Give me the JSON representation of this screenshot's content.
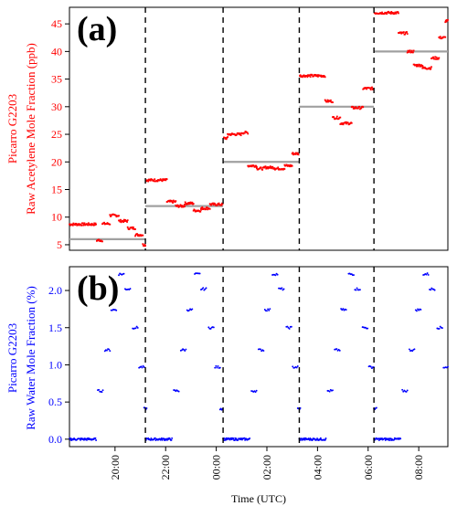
{
  "chart_data": [
    {
      "type": "scatter",
      "panel_label": "(a)",
      "ylabel_line1": "Picarro G2203",
      "ylabel_line2": "Raw Acetylene Mole Fraction (ppb)",
      "label_color": "#ff0000",
      "marker_color": "#ff0000",
      "reference_color": "#a0a0a0",
      "ylim": [
        4,
        48
      ],
      "yticks": [
        "5",
        "10",
        "15",
        "20",
        "25",
        "30",
        "35",
        "40",
        "45"
      ],
      "ytick_values": [
        5,
        10,
        15,
        20,
        25,
        30,
        35,
        40,
        45
      ],
      "grid": false,
      "dashed_vlines_hours": [
        21.2,
        24.27,
        27.28,
        30.23
      ],
      "reference_lines": [
        {
          "value": 6,
          "x_start_hours": 18.2,
          "x_end_hours": 21.2
        },
        {
          "value": 12,
          "x_start_hours": 21.2,
          "x_end_hours": 24.27
        },
        {
          "value": 20,
          "x_start_hours": 24.27,
          "x_end_hours": 27.28
        },
        {
          "value": 30,
          "x_start_hours": 27.28,
          "x_end_hours": 30.23
        },
        {
          "value": 40,
          "x_start_hours": 30.23,
          "x_end_hours": 33.15
        }
      ],
      "segments": [
        {
          "x_start_hours": 18.2,
          "x_end_hours": 19.25,
          "value": 8.7
        },
        {
          "x_start_hours": 19.28,
          "x_end_hours": 19.5,
          "value": 5.8
        },
        {
          "x_start_hours": 19.5,
          "x_end_hours": 19.8,
          "value": 8.8
        },
        {
          "x_start_hours": 19.8,
          "x_end_hours": 20.15,
          "value": 10.3
        },
        {
          "x_start_hours": 20.15,
          "x_end_hours": 20.5,
          "value": 9.3
        },
        {
          "x_start_hours": 20.5,
          "x_end_hours": 20.8,
          "value": 8.0
        },
        {
          "x_start_hours": 20.8,
          "x_end_hours": 21.1,
          "value": 6.8
        },
        {
          "x_start_hours": 21.1,
          "x_end_hours": 21.2,
          "value": 5.0
        },
        {
          "x_start_hours": 21.22,
          "x_end_hours": 22.05,
          "value": 16.7
        },
        {
          "x_start_hours": 22.05,
          "x_end_hours": 22.4,
          "value": 12.8
        },
        {
          "x_start_hours": 22.4,
          "x_end_hours": 22.75,
          "value": 12.0
        },
        {
          "x_start_hours": 22.75,
          "x_end_hours": 23.1,
          "value": 12.5
        },
        {
          "x_start_hours": 23.1,
          "x_end_hours": 23.4,
          "value": 11.2
        },
        {
          "x_start_hours": 23.4,
          "x_end_hours": 23.75,
          "value": 11.6
        },
        {
          "x_start_hours": 23.75,
          "x_end_hours": 24.25,
          "value": 12.3
        },
        {
          "x_start_hours": 24.3,
          "x_end_hours": 24.45,
          "value": 24.3
        },
        {
          "x_start_hours": 24.45,
          "x_end_hours": 25.0,
          "value": 25.0
        },
        {
          "x_start_hours": 25.0,
          "x_end_hours": 25.25,
          "value": 25.3
        },
        {
          "x_start_hours": 25.25,
          "x_end_hours": 25.6,
          "value": 19.3
        },
        {
          "x_start_hours": 25.6,
          "x_end_hours": 25.9,
          "value": 18.8
        },
        {
          "x_start_hours": 25.9,
          "x_end_hours": 26.3,
          "value": 19.0
        },
        {
          "x_start_hours": 26.3,
          "x_end_hours": 26.7,
          "value": 18.8
        },
        {
          "x_start_hours": 26.7,
          "x_end_hours": 27.0,
          "value": 19.3
        },
        {
          "x_start_hours": 27.0,
          "x_end_hours": 27.25,
          "value": 21.5
        },
        {
          "x_start_hours": 27.3,
          "x_end_hours": 28.3,
          "value": 35.6
        },
        {
          "x_start_hours": 28.3,
          "x_end_hours": 28.6,
          "value": 31.0
        },
        {
          "x_start_hours": 28.6,
          "x_end_hours": 28.9,
          "value": 28.0
        },
        {
          "x_start_hours": 28.9,
          "x_end_hours": 29.35,
          "value": 27.0
        },
        {
          "x_start_hours": 29.35,
          "x_end_hours": 29.8,
          "value": 29.8
        },
        {
          "x_start_hours": 29.8,
          "x_end_hours": 30.2,
          "value": 33.3
        },
        {
          "x_start_hours": 30.25,
          "x_end_hours": 31.2,
          "value": 47.0
        },
        {
          "x_start_hours": 31.2,
          "x_end_hours": 31.55,
          "value": 43.3
        },
        {
          "x_start_hours": 31.55,
          "x_end_hours": 31.8,
          "value": 40.0
        },
        {
          "x_start_hours": 31.8,
          "x_end_hours": 32.15,
          "value": 37.5
        },
        {
          "x_start_hours": 32.15,
          "x_end_hours": 32.5,
          "value": 37.0
        },
        {
          "x_start_hours": 32.5,
          "x_end_hours": 32.8,
          "value": 38.8
        },
        {
          "x_start_hours": 32.8,
          "x_end_hours": 33.05,
          "value": 42.5
        },
        {
          "x_start_hours": 33.05,
          "x_end_hours": 33.15,
          "value": 45.5
        }
      ]
    },
    {
      "type": "scatter",
      "panel_label": "(b)",
      "ylabel_line1": "Picarro G2203",
      "ylabel_line2": "Raw Water Mole Fraction (%)",
      "label_color": "#0000ff",
      "marker_color": "#0000ff",
      "ylim": [
        -0.1,
        2.32
      ],
      "yticks": [
        "0.0",
        "0.5",
        "1.0",
        "1.5",
        "2.0"
      ],
      "ytick_values": [
        0.0,
        0.5,
        1.0,
        1.5,
        2.0
      ],
      "grid": false,
      "xlabel": "Time (UTC)",
      "xticks": [
        "20:00",
        "22:00",
        "00:00",
        "02:00",
        "04:00",
        "06:00",
        "08:00"
      ],
      "xtick_hours": [
        20,
        22,
        24,
        26,
        28,
        30,
        32
      ],
      "xlim_hours": [
        18.2,
        33.15
      ],
      "dashed_vlines_hours": [
        21.2,
        24.27,
        27.28,
        30.23
      ],
      "cycle_start_hours": [
        18.2,
        21.2,
        24.27,
        27.28,
        30.23
      ],
      "cycle_steps": [
        {
          "dx_start": 0.0,
          "dx_end": 1.05,
          "value": 0.0
        },
        {
          "dx_start": 1.12,
          "dx_end": 1.32,
          "value": 0.65
        },
        {
          "dx_start": 1.4,
          "dx_end": 1.6,
          "value": 1.2
        },
        {
          "dx_start": 1.65,
          "dx_end": 1.85,
          "value": 1.74
        },
        {
          "dx_start": 1.95,
          "dx_end": 2.15,
          "value": 2.22
        },
        {
          "dx_start": 2.2,
          "dx_end": 2.4,
          "value": 2.02
        },
        {
          "dx_start": 2.5,
          "dx_end": 2.7,
          "value": 1.5
        },
        {
          "dx_start": 2.75,
          "dx_end": 2.95,
          "value": 0.97
        },
        {
          "dx_start": 2.95,
          "dx_end": 3.05,
          "value": 0.41
        }
      ]
    }
  ]
}
